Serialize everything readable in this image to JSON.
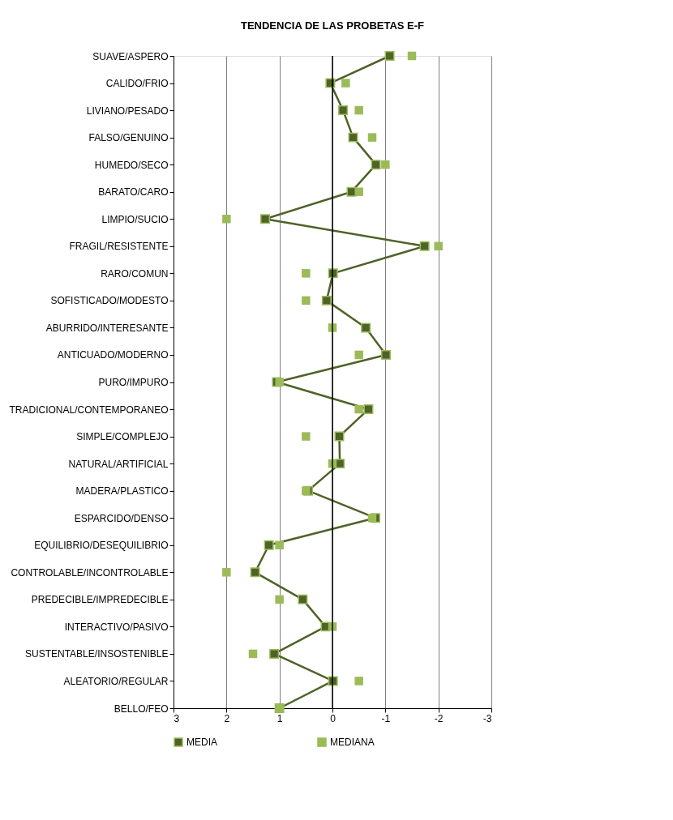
{
  "chart_data": {
    "type": "line",
    "title": "TENDENCIA  DE LAS PROBETAS  E-F",
    "orientation": "horizontal",
    "categories": [
      "SUAVE/ASPERO",
      "CALIDO/FRIO",
      "LIVIANO/PESADO",
      "FALSO/GENUINO",
      "HUMEDO/SECO",
      "BARATO/CARO",
      "LIMPIO/SUCIO",
      "FRAGIL/RESISTENTE",
      "RARO/COMUN",
      "SOFISTICADO/MODESTO",
      "ABURRIDO/INTERESANTE",
      "ANTICUADO/MODERNO",
      "PURO/IMPURO",
      "TRADICIONAL/CONTEMPORANEO",
      "SIMPLE/COMPLEJO",
      "NATURAL/ARTIFICIAL",
      "MADERA/PLASTICO",
      "ESPARCIDO/DENSO",
      "EQUILIBRIO/DESEQUILIBRIO",
      "CONTROLABLE/INCONTROLABLE",
      "PREDECIBLE/IMPREDECIBLE",
      "INTERACTIVO/PASIVO",
      "SUSTENTABLE/INSOSTENIBLE",
      "ALEATORIO/REGULAR",
      "BELLO/FEO"
    ],
    "series": [
      {
        "name": "MEDIA",
        "color": "#4f6228",
        "values": [
          -1.08,
          0.04,
          -0.2,
          -0.39,
          -0.82,
          -0.36,
          1.27,
          -1.74,
          -0.01,
          0.11,
          -0.63,
          -1.01,
          1.05,
          -0.68,
          -0.13,
          -0.14,
          0.46,
          -0.81,
          1.2,
          1.46,
          0.56,
          0.13,
          1.1,
          -0.01,
          1.0
        ]
      },
      {
        "name": "MEDIANA",
        "type": "scatter",
        "color": "#9bbb59",
        "values": [
          -1.5,
          -0.25,
          -0.5,
          -0.75,
          -1,
          -0.5,
          2,
          -2,
          0.5,
          0.5,
          0,
          -0.5,
          1,
          -0.5,
          0.5,
          0,
          0.5,
          -0.75,
          1,
          2,
          1,
          0,
          1.5,
          -0.5,
          1
        ]
      }
    ],
    "xlim": [
      3,
      -3
    ],
    "xticks": [
      3,
      2,
      1,
      0,
      -1,
      -2,
      -3
    ],
    "ref_lines": [
      {
        "axis": "x",
        "value": 0,
        "color": "#000000"
      }
    ],
    "grid": "x",
    "legend": "bottom",
    "marker": "square"
  }
}
